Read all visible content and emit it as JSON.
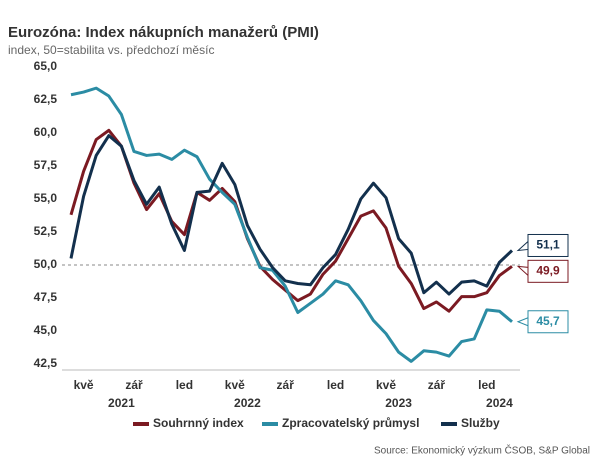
{
  "chart_data": {
    "type": "line",
    "title": "Eurozóna: Index nákupních manažerů (PMI)",
    "subtitle": "index, 50=stabilita vs. předchozí měsíc",
    "source": "Source: Ekonomický výzkum ČSOB, S&P Global",
    "categories": [
      null,
      "kvě",
      null,
      null,
      null,
      "zář",
      null,
      null,
      null,
      "led",
      null,
      null,
      null,
      "kvě",
      null,
      null,
      null,
      "zář",
      null,
      null,
      null,
      "led",
      null,
      null,
      null,
      "kvě",
      null,
      null,
      null,
      "zář",
      null,
      null,
      null,
      "led",
      null,
      null
    ],
    "years": [
      null,
      null,
      null,
      null,
      "2021",
      null,
      null,
      null,
      null,
      null,
      null,
      null,
      null,
      null,
      "2022",
      null,
      null,
      null,
      null,
      null,
      null,
      null,
      null,
      null,
      null,
      null,
      "2023",
      null,
      null,
      null,
      null,
      null,
      null,
      null,
      "2024",
      null
    ],
    "series": [
      {
        "name": "Souhrnný index",
        "color": "#7b1a22",
        "values": [
          53.8,
          57.1,
          59.5,
          60.2,
          59.0,
          56.2,
          54.2,
          55.4,
          53.3,
          52.3,
          55.5,
          54.9,
          55.8,
          54.8,
          52.0,
          49.9,
          48.9,
          48.1,
          47.3,
          47.8,
          49.3,
          50.3,
          52.0,
          53.7,
          54.1,
          52.8,
          49.9,
          48.6,
          46.7,
          47.2,
          46.5,
          47.6,
          47.6,
          47.9,
          49.2,
          49.9
        ],
        "value_labels": [
          null,
          null,
          null,
          null,
          null,
          null,
          null,
          null,
          null,
          null,
          null,
          null,
          null,
          null,
          null,
          null,
          null,
          null,
          null,
          null,
          null,
          null,
          null,
          null,
          null,
          null,
          null,
          null,
          null,
          null,
          null,
          null,
          null,
          null,
          null,
          "49,9"
        ]
      },
      {
        "name": "Zpracovatelský průmysl",
        "color": "#2b8ca4",
        "values": [
          62.9,
          63.1,
          63.4,
          62.8,
          61.4,
          58.6,
          58.3,
          58.4,
          58.0,
          58.7,
          58.2,
          56.5,
          55.5,
          54.6,
          52.1,
          49.8,
          49.6,
          48.4,
          46.4,
          47.1,
          47.8,
          48.8,
          48.5,
          47.3,
          45.8,
          44.8,
          43.4,
          42.7,
          43.5,
          43.4,
          43.1,
          44.2,
          44.4,
          46.6,
          46.5,
          45.7
        ],
        "value_labels": [
          null,
          null,
          null,
          null,
          null,
          null,
          null,
          null,
          null,
          null,
          null,
          null,
          null,
          null,
          null,
          null,
          null,
          null,
          null,
          null,
          null,
          null,
          null,
          null,
          null,
          null,
          null,
          null,
          null,
          null,
          null,
          null,
          null,
          null,
          null,
          "45,7"
        ]
      },
      {
        "name": "Služby",
        "color": "#13304d",
        "values": [
          50.5,
          55.2,
          58.3,
          59.8,
          59.0,
          56.4,
          54.6,
          55.9,
          53.1,
          51.1,
          55.5,
          55.6,
          57.7,
          56.1,
          53.0,
          51.2,
          49.8,
          48.8,
          48.6,
          48.5,
          49.8,
          50.8,
          52.7,
          55.0,
          56.2,
          55.1,
          52.0,
          50.9,
          47.9,
          48.7,
          47.8,
          48.7,
          48.8,
          48.4,
          50.2,
          51.1
        ],
        "value_labels": [
          null,
          null,
          null,
          null,
          null,
          null,
          null,
          null,
          null,
          null,
          null,
          null,
          null,
          null,
          null,
          null,
          null,
          null,
          null,
          null,
          null,
          null,
          null,
          null,
          null,
          null,
          null,
          null,
          null,
          null,
          null,
          null,
          null,
          null,
          null,
          "51,1"
        ]
      }
    ],
    "ylim": [
      42.5,
      65
    ],
    "yticks": [
      {
        "value": 42.5,
        "label": "42,5"
      },
      {
        "value": 45,
        "label": "45,0"
      },
      {
        "value": 47.5,
        "label": "47,5"
      },
      {
        "value": 50,
        "label": "50,0"
      },
      {
        "value": 52.5,
        "label": "52,5"
      },
      {
        "value": 55,
        "label": "55,0"
      },
      {
        "value": 57.5,
        "label": "57,5"
      },
      {
        "value": 60,
        "label": "60,0"
      },
      {
        "value": 62.5,
        "label": "62,5"
      },
      {
        "value": 65,
        "label": "65,0"
      }
    ],
    "reference_line": 50,
    "legend": "bottom"
  }
}
